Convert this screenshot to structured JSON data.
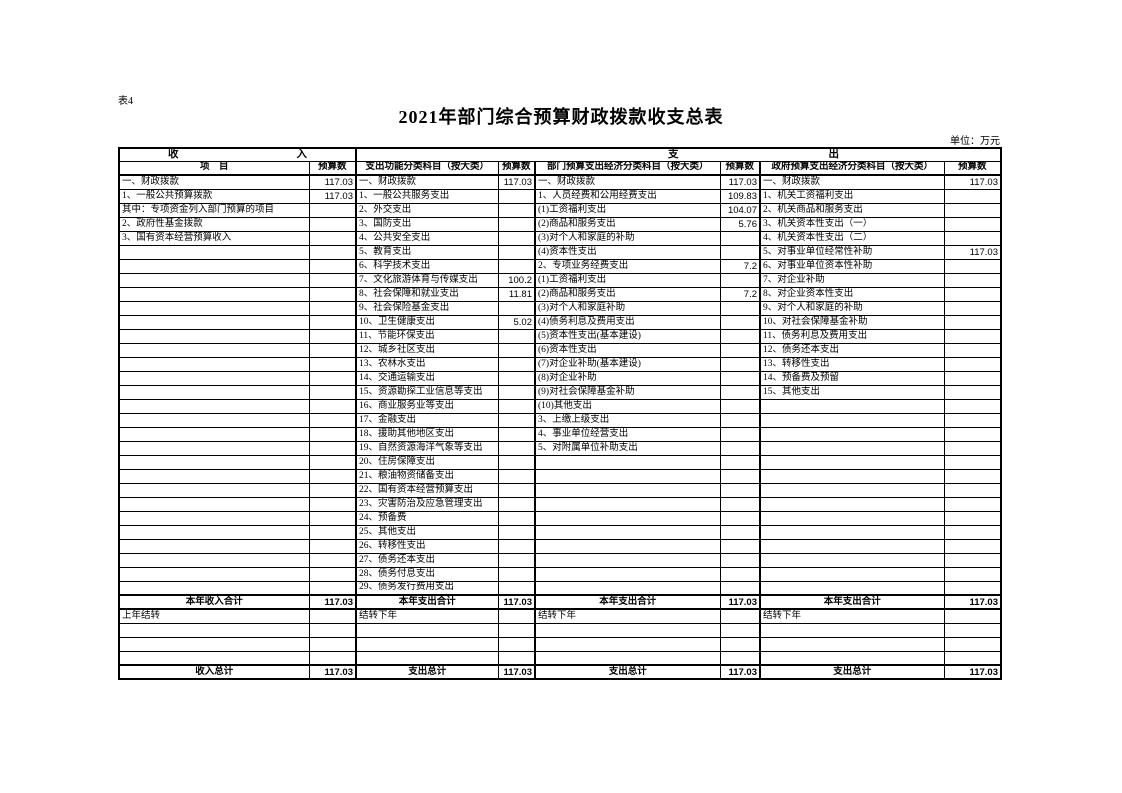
{
  "page": {
    "tag": "表4",
    "title": "2021年部门综合预算财政拨款收支总表",
    "unit": "单位：万元"
  },
  "table": {
    "section_headers": {
      "income": [
        "收",
        "入"
      ],
      "expense": [
        "支",
        "出"
      ]
    },
    "column_headers": [
      "项　目",
      "预算数",
      "支出功能分类科目（按大类）",
      "预算数",
      "部门预算支出经济分类科目（按大类）",
      "预算数",
      "政府预算支出经济分类科目（按大类）",
      "预算数"
    ],
    "body_row_count": 30,
    "income_items": [
      {
        "label": "一、财政拨款",
        "indent": 0,
        "value": "117.03"
      },
      {
        "label": "1、一般公共预算拨款",
        "indent": 1,
        "value": "117.03"
      },
      {
        "label": "其中：专项资金列入部门预算的项目",
        "indent": 2,
        "value": ""
      },
      {
        "label": "2、政府性基金拨款",
        "indent": 1,
        "value": ""
      },
      {
        "label": "3、国有资本经营预算收入",
        "indent": 1,
        "value": ""
      }
    ],
    "function_items": [
      {
        "label": "一、财政拨款",
        "indent": 0,
        "value": "117.03"
      },
      {
        "label": "1、一般公共服务支出",
        "indent": 1,
        "value": ""
      },
      {
        "label": "2、外交支出",
        "indent": 1,
        "value": ""
      },
      {
        "label": "3、国防支出",
        "indent": 1,
        "value": ""
      },
      {
        "label": "4、公共安全支出",
        "indent": 1,
        "value": ""
      },
      {
        "label": "5、教育支出",
        "indent": 1,
        "value": ""
      },
      {
        "label": "6、科学技术支出",
        "indent": 1,
        "value": ""
      },
      {
        "label": "7、文化旅游体育与传媒支出",
        "indent": 1,
        "value": "100.2"
      },
      {
        "label": "8、社会保障和就业支出",
        "indent": 1,
        "value": "11.81"
      },
      {
        "label": "9、社会保险基金支出",
        "indent": 1,
        "value": ""
      },
      {
        "label": "10、卫生健康支出",
        "indent": 1,
        "value": "5.02"
      },
      {
        "label": "11、节能环保支出",
        "indent": 1,
        "value": ""
      },
      {
        "label": "12、城乡社区支出",
        "indent": 1,
        "value": ""
      },
      {
        "label": "13、农林水支出",
        "indent": 1,
        "value": ""
      },
      {
        "label": "14、交通运输支出",
        "indent": 1,
        "value": ""
      },
      {
        "label": "15、资源勘探工业信息等支出",
        "indent": 1,
        "value": ""
      },
      {
        "label": "16、商业服务业等支出",
        "indent": 1,
        "value": ""
      },
      {
        "label": "17、金融支出",
        "indent": 1,
        "value": ""
      },
      {
        "label": "18、援助其他地区支出",
        "indent": 1,
        "value": ""
      },
      {
        "label": "19、自然资源海洋气象等支出",
        "indent": 1,
        "value": ""
      },
      {
        "label": "20、住房保障支出",
        "indent": 1,
        "value": ""
      },
      {
        "label": "21、粮油物资储备支出",
        "indent": 1,
        "value": ""
      },
      {
        "label": "22、国有资本经营预算支出",
        "indent": 1,
        "value": ""
      },
      {
        "label": "23、灾害防治及应急管理支出",
        "indent": 1,
        "value": ""
      },
      {
        "label": "24、预备费",
        "indent": 1,
        "value": ""
      },
      {
        "label": "25、其他支出",
        "indent": 1,
        "value": ""
      },
      {
        "label": "26、转移性支出",
        "indent": 1,
        "value": ""
      },
      {
        "label": "27、债务还本支出",
        "indent": 1,
        "value": ""
      },
      {
        "label": "28、债务付息支出",
        "indent": 1,
        "value": ""
      },
      {
        "label": "29、债务发行费用支出",
        "indent": 1,
        "value": ""
      }
    ],
    "dept_econ_items": [
      {
        "label": "一、财政拨款",
        "indent": 0,
        "value": "117.03"
      },
      {
        "label": "1、人员经费和公用经费支出",
        "indent": 1,
        "value": "109.83"
      },
      {
        "label": "(1)工资福利支出",
        "indent": 2,
        "value": "104.07"
      },
      {
        "label": "(2)商品和服务支出",
        "indent": 2,
        "value": "5.76"
      },
      {
        "label": "(3)对个人和家庭的补助",
        "indent": 2,
        "value": ""
      },
      {
        "label": "(4)资本性支出",
        "indent": 2,
        "value": ""
      },
      {
        "label": "2、专项业务经费支出",
        "indent": 1,
        "value": "7.2"
      },
      {
        "label": "(1)工资福利支出",
        "indent": 2,
        "value": ""
      },
      {
        "label": "(2)商品和服务支出",
        "indent": 2,
        "value": "7.2"
      },
      {
        "label": "(3)对个人和家庭补助",
        "indent": 2,
        "value": ""
      },
      {
        "label": "(4)债务利息及费用支出",
        "indent": 2,
        "value": ""
      },
      {
        "label": "(5)资本性支出(基本建设)",
        "indent": 2,
        "value": ""
      },
      {
        "label": "(6)资本性支出",
        "indent": 2,
        "value": ""
      },
      {
        "label": "(7)对企业补助(基本建设)",
        "indent": 2,
        "value": ""
      },
      {
        "label": "(8)对企业补助",
        "indent": 2,
        "value": ""
      },
      {
        "label": "(9)对社会保障基金补助",
        "indent": 2,
        "value": ""
      },
      {
        "label": "(10)其他支出",
        "indent": 2,
        "value": ""
      },
      {
        "label": "3、上缴上级支出",
        "indent": 1,
        "value": ""
      },
      {
        "label": "4、事业单位经营支出",
        "indent": 1,
        "value": ""
      },
      {
        "label": "5、对附属单位补助支出",
        "indent": 1,
        "value": ""
      }
    ],
    "gov_econ_items": [
      {
        "label": "一、财政拨款",
        "indent": 0,
        "value": "117.03"
      },
      {
        "label": "1、机关工资福利支出",
        "indent": 1,
        "value": ""
      },
      {
        "label": "2、机关商品和服务支出",
        "indent": 1,
        "value": ""
      },
      {
        "label": "3、机关资本性支出（一）",
        "indent": 1,
        "value": ""
      },
      {
        "label": "4、机关资本性支出（二）",
        "indent": 1,
        "value": ""
      },
      {
        "label": "5、对事业单位经常性补助",
        "indent": 1,
        "value": "117.03"
      },
      {
        "label": "6、对事业单位资本性补助",
        "indent": 1,
        "value": ""
      },
      {
        "label": "7、对企业补助",
        "indent": 1,
        "value": ""
      },
      {
        "label": "8、对企业资本性支出",
        "indent": 1,
        "value": ""
      },
      {
        "label": "9、对个人和家庭的补助",
        "indent": 1,
        "value": ""
      },
      {
        "label": "10、对社会保障基金补助",
        "indent": 1,
        "value": ""
      },
      {
        "label": "11、债务利息及费用支出",
        "indent": 1,
        "value": ""
      },
      {
        "label": "12、债务还本支出",
        "indent": 1,
        "value": ""
      },
      {
        "label": "13、转移性支出",
        "indent": 1,
        "value": ""
      },
      {
        "label": "14、预备费及预留",
        "indent": 1,
        "value": ""
      },
      {
        "label": "15、其他支出",
        "indent": 1,
        "value": ""
      }
    ],
    "summary_row": {
      "cells": [
        {
          "label": "本年收入合计",
          "value": "117.03"
        },
        {
          "label": "本年支出合计",
          "value": "117.03"
        },
        {
          "label": "本年支出合计",
          "value": "117.03"
        },
        {
          "label": "本年支出合计",
          "value": "117.03"
        }
      ]
    },
    "carryover_row": {
      "cells": [
        {
          "label": "上年结转",
          "value": ""
        },
        {
          "label": "结转下年",
          "value": ""
        },
        {
          "label": "结转下年",
          "value": ""
        },
        {
          "label": "结转下年",
          "value": ""
        }
      ]
    },
    "blank_row_count": 3,
    "total_row": {
      "cells": [
        {
          "label": "收入总计",
          "value": "117.03"
        },
        {
          "label": "支出总计",
          "value": "117.03"
        },
        {
          "label": "支出总计",
          "value": "117.03"
        },
        {
          "label": "支出总计",
          "value": "117.03"
        }
      ]
    }
  }
}
